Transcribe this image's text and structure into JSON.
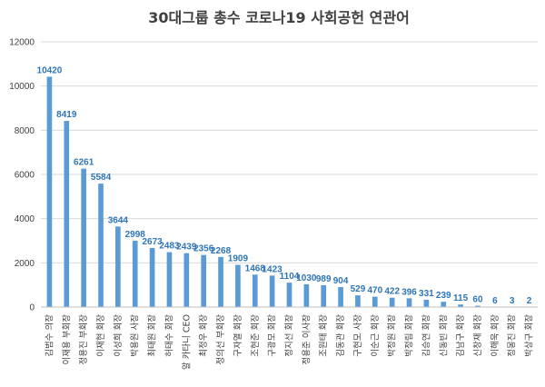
{
  "chart_data": {
    "type": "bar",
    "title": "30대그룹 총수 코로나19 사회공헌 연관어",
    "xlabel": "",
    "ylabel": "",
    "ylim": [
      0,
      12000
    ],
    "yticks": [
      0,
      2000,
      4000,
      6000,
      8000,
      10000,
      12000
    ],
    "grid": true,
    "legend": "none",
    "color": "#5b9bd5",
    "label_color": "#2e75b6",
    "categories": [
      "김범수 의장",
      "이재용 부회장",
      "정용진 부회장",
      "이재현 회장",
      "이성희 회장",
      "박용원 사장",
      "최태원 회장",
      "허태수 회장",
      "알 카타니 CEO",
      "최정우 회장",
      "정의선 부회장",
      "구자열 회장",
      "조현준 회장",
      "구광모 회장",
      "정지선 회장",
      "정용준 이사장",
      "조원태 회장",
      "김동관 회장",
      "구현모 사장",
      "이순근 회장",
      "박정원 회장",
      "박정림 회장",
      "김승연 회장",
      "신동빈 회장",
      "김남구 회장",
      "신창재 회장",
      "이해욱 회장",
      "정몽진 회장",
      "박상구 회장"
    ],
    "values": [
      10420,
      8419,
      6261,
      5584,
      3644,
      2998,
      2673,
      2483,
      2439,
      2356,
      2268,
      1909,
      1468,
      1423,
      1104,
      1030,
      989,
      904,
      529,
      470,
      422,
      396,
      331,
      239,
      115,
      60,
      6,
      3,
      2
    ]
  }
}
